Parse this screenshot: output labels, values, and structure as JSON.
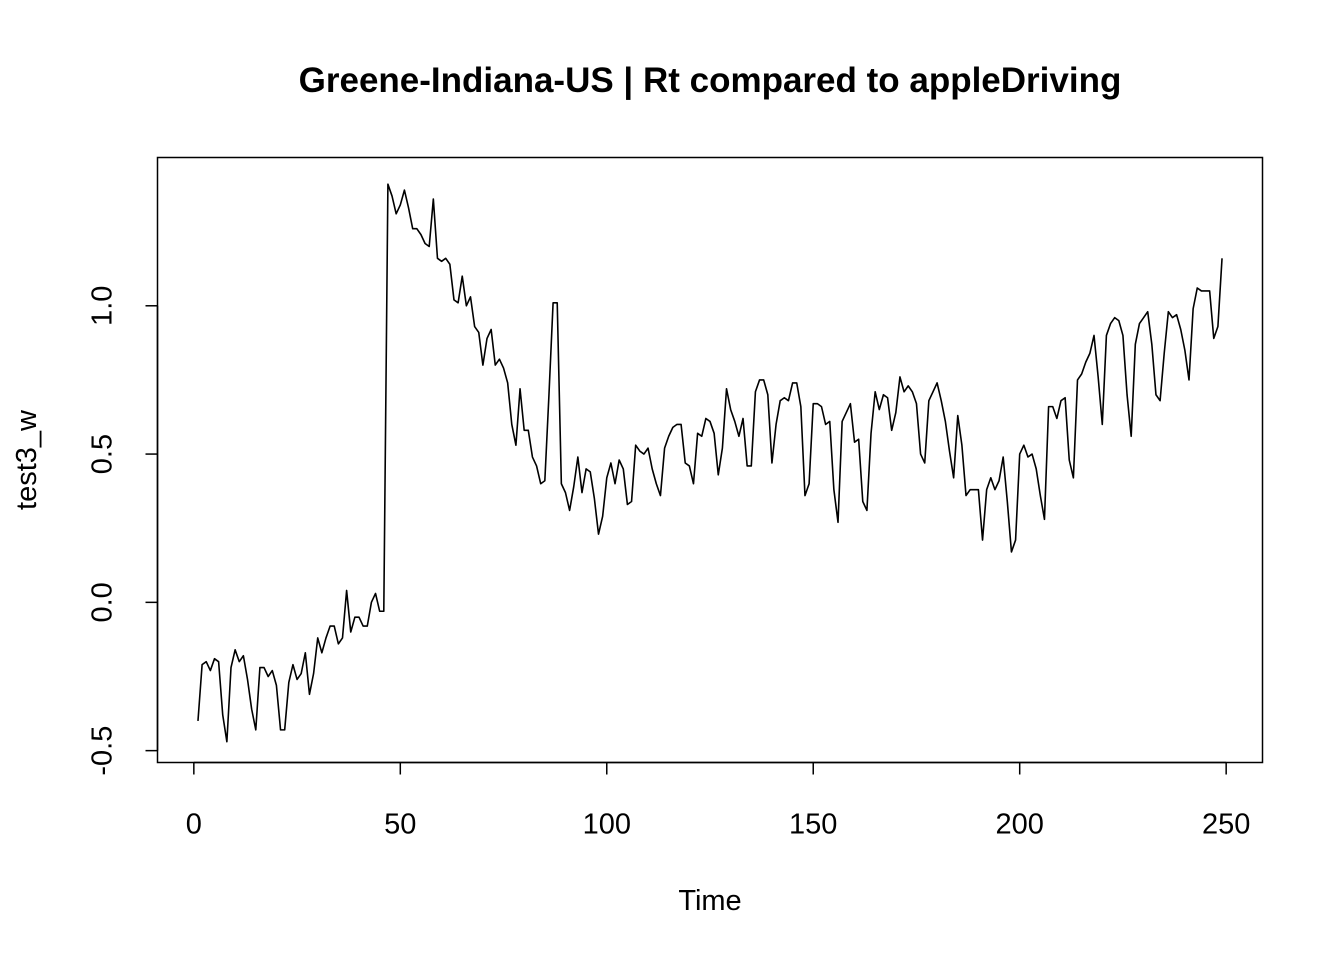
{
  "chart_data": {
    "type": "line",
    "title": "Greene-Indiana-US | Rt compared to appleDriving",
    "xlabel": "Time",
    "ylabel": "test3_w",
    "xlim": [
      -8.8,
      258.8
    ],
    "ylim": [
      -0.54,
      1.5
    ],
    "x_ticks": [
      0,
      50,
      100,
      150,
      200,
      250
    ],
    "x_tick_labels": [
      "0",
      "50",
      "100",
      "150",
      "200",
      "250"
    ],
    "y_ticks": [
      -0.5,
      0.0,
      0.5,
      1.0
    ],
    "y_tick_labels": [
      "-0.5",
      "0.0",
      "0.5",
      "1.0"
    ],
    "grid": false,
    "legend": "none",
    "line_color": "#000000",
    "series": [
      {
        "x_start": 1,
        "x_step": 1,
        "values": [
          -0.4,
          -0.21,
          -0.2,
          -0.23,
          -0.19,
          -0.2,
          -0.38,
          -0.47,
          -0.22,
          -0.16,
          -0.2,
          -0.18,
          -0.26,
          -0.36,
          -0.43,
          -0.22,
          -0.22,
          -0.25,
          -0.23,
          -0.28,
          -0.43,
          -0.43,
          -0.27,
          -0.21,
          -0.26,
          -0.24,
          -0.17,
          -0.31,
          -0.24,
          -0.12,
          -0.17,
          -0.12,
          -0.08,
          -0.08,
          -0.14,
          -0.12,
          0.04,
          -0.1,
          -0.05,
          -0.05,
          -0.08,
          -0.08,
          0.0,
          0.03,
          -0.03,
          -0.03,
          1.41,
          1.37,
          1.31,
          1.34,
          1.39,
          1.33,
          1.26,
          1.26,
          1.24,
          1.21,
          1.2,
          1.36,
          1.16,
          1.15,
          1.16,
          1.14,
          1.02,
          1.01,
          1.1,
          1.0,
          1.03,
          0.93,
          0.91,
          0.8,
          0.89,
          0.92,
          0.8,
          0.82,
          0.79,
          0.74,
          0.6,
          0.53,
          0.72,
          0.58,
          0.58,
          0.49,
          0.46,
          0.4,
          0.41,
          0.7,
          1.01,
          1.01,
          0.4,
          0.37,
          0.31,
          0.39,
          0.49,
          0.37,
          0.45,
          0.44,
          0.35,
          0.23,
          0.29,
          0.42,
          0.47,
          0.4,
          0.48,
          0.45,
          0.33,
          0.34,
          0.53,
          0.51,
          0.5,
          0.52,
          0.45,
          0.4,
          0.36,
          0.52,
          0.56,
          0.59,
          0.6,
          0.6,
          0.47,
          0.46,
          0.4,
          0.57,
          0.56,
          0.62,
          0.61,
          0.57,
          0.43,
          0.52,
          0.72,
          0.65,
          0.61,
          0.56,
          0.62,
          0.46,
          0.46,
          0.71,
          0.75,
          0.75,
          0.7,
          0.47,
          0.6,
          0.68,
          0.69,
          0.68,
          0.74,
          0.74,
          0.66,
          0.36,
          0.4,
          0.67,
          0.67,
          0.66,
          0.6,
          0.61,
          0.38,
          0.27,
          0.61,
          0.64,
          0.67,
          0.54,
          0.55,
          0.34,
          0.31,
          0.57,
          0.71,
          0.65,
          0.7,
          0.69,
          0.58,
          0.64,
          0.76,
          0.71,
          0.73,
          0.71,
          0.67,
          0.5,
          0.47,
          0.68,
          0.71,
          0.74,
          0.68,
          0.61,
          0.51,
          0.42,
          0.63,
          0.53,
          0.36,
          0.38,
          0.38,
          0.38,
          0.21,
          0.38,
          0.42,
          0.38,
          0.41,
          0.49,
          0.34,
          0.17,
          0.21,
          0.5,
          0.53,
          0.49,
          0.5,
          0.45,
          0.36,
          0.28,
          0.66,
          0.66,
          0.62,
          0.68,
          0.69,
          0.48,
          0.42,
          0.75,
          0.77,
          0.81,
          0.84,
          0.9,
          0.76,
          0.6,
          0.9,
          0.94,
          0.96,
          0.95,
          0.9,
          0.7,
          0.56,
          0.87,
          0.94,
          0.96,
          0.98,
          0.87,
          0.7,
          0.68,
          0.84,
          0.98,
          0.96,
          0.97,
          0.92,
          0.85,
          0.75,
          0.99,
          1.06,
          1.05,
          1.05,
          1.05,
          0.89,
          0.93,
          1.16
        ]
      }
    ]
  }
}
